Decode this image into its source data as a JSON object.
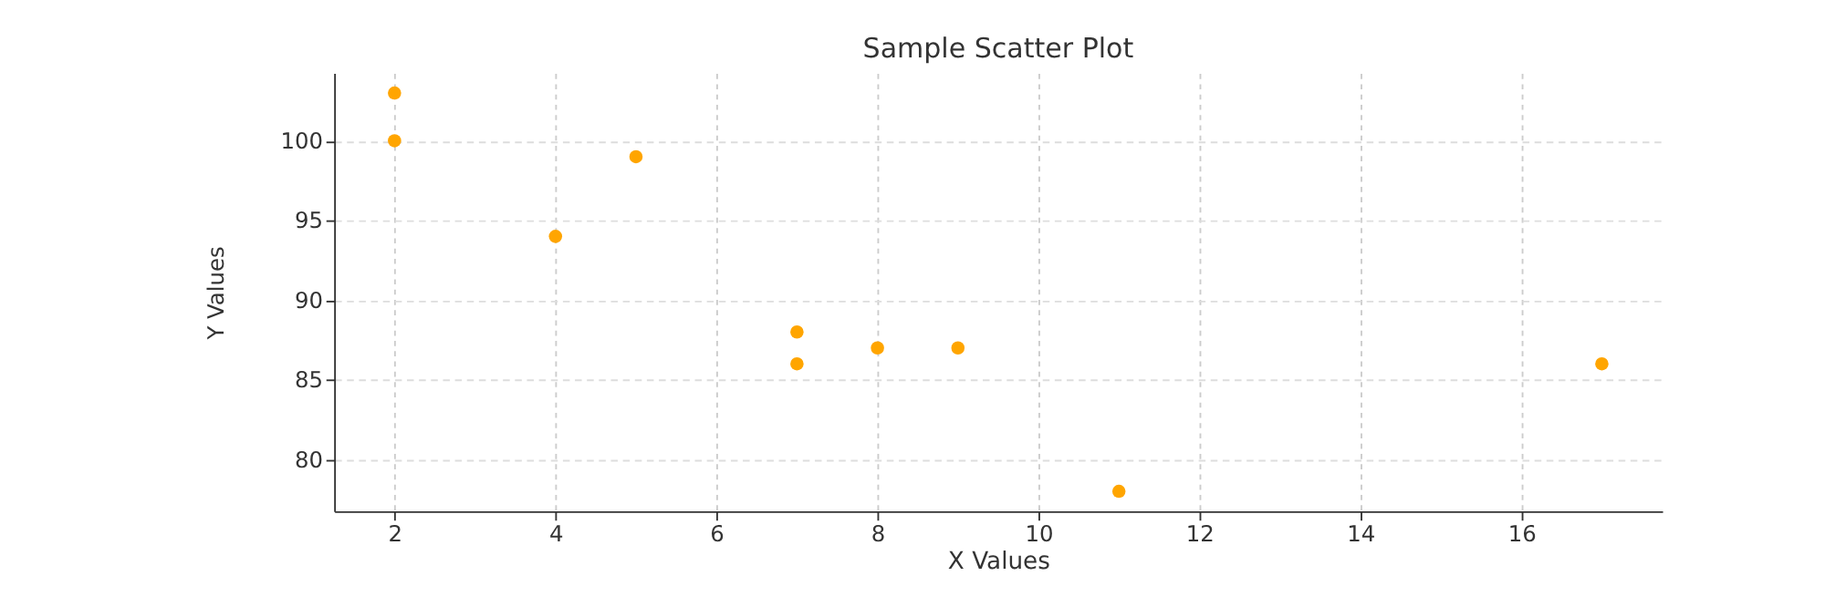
{
  "chart_data": {
    "type": "scatter",
    "title": "Sample Scatter Plot",
    "xlabel": "X Values",
    "ylabel": "Y Values",
    "x": [
      2,
      2,
      4,
      5,
      7,
      7,
      8,
      9,
      11,
      17
    ],
    "series": [
      {
        "color": "#ffa500",
        "values": [
          103,
          100,
          94,
          99,
          88,
          86,
          87,
          87,
          78,
          86
        ]
      }
    ],
    "xlim": [
      1.25,
      17.75
    ],
    "xticks": [
      2,
      4,
      6,
      8,
      10,
      12,
      14,
      16
    ],
    "ylim": [
      76.75,
      104.25
    ],
    "yticks": [
      80,
      85,
      90,
      95,
      100
    ],
    "grid": true,
    "marker": "circle"
  }
}
